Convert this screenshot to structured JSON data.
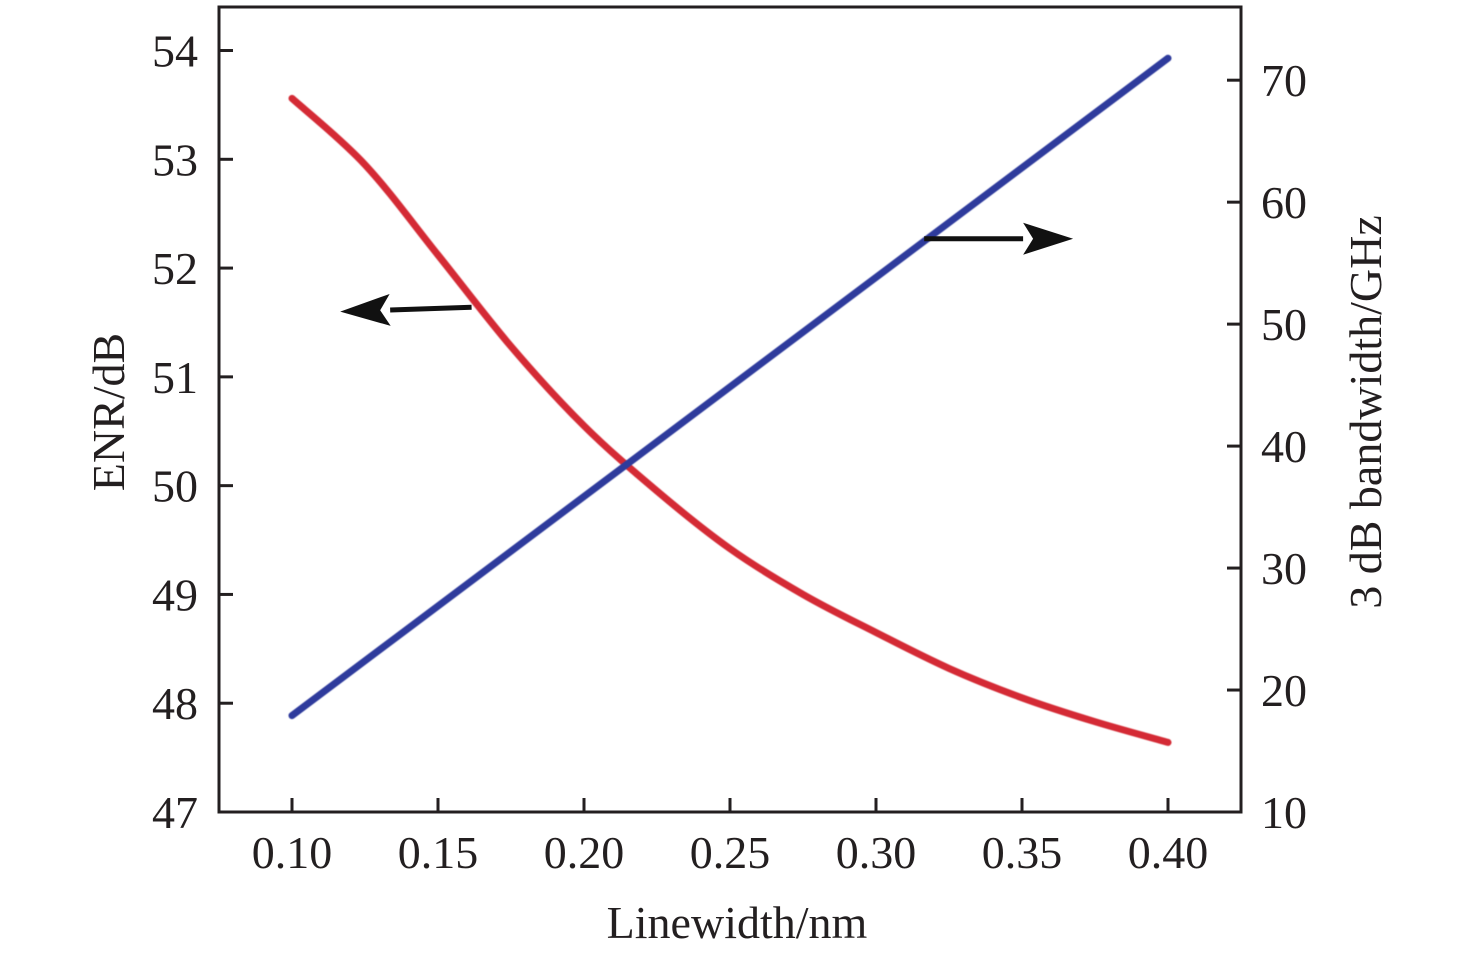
{
  "chart_data": {
    "type": "line",
    "title": "",
    "xlabel": "Linewidth/nm",
    "ylabel_left": "ENR/dB",
    "ylabel_right": "3 dB bandwidth/GHz",
    "xlim": [
      0.075,
      0.425
    ],
    "ylim_left": [
      47,
      54.4
    ],
    "ylim_right": [
      10,
      76
    ],
    "x_ticks": [
      "0.10",
      "0.15",
      "0.20",
      "0.25",
      "0.30",
      "0.35",
      "0.40"
    ],
    "y_left_ticks": [
      "47",
      "48",
      "49",
      "50",
      "51",
      "52",
      "53",
      "54"
    ],
    "y_right_ticks": [
      "10",
      "20",
      "30",
      "40",
      "50",
      "60",
      "70"
    ],
    "grid": false,
    "legend": "none",
    "series": [
      {
        "axis": "left",
        "color": "#d42a35",
        "x": [
          0.1,
          0.125,
          0.15,
          0.175,
          0.2,
          0.225,
          0.25,
          0.275,
          0.3,
          0.325,
          0.35,
          0.375,
          0.4
        ],
        "y": [
          53.56,
          52.95,
          52.12,
          51.28,
          50.55,
          49.95,
          49.42,
          49.0,
          48.65,
          48.32,
          48.05,
          47.83,
          47.64
        ]
      },
      {
        "axis": "right",
        "color": "#2e3a9c",
        "x": [
          0.1,
          0.4
        ],
        "y": [
          17.9,
          71.8
        ]
      }
    ],
    "annotations": [
      {
        "type": "arrow",
        "direction": "left",
        "points_to": "left-axis",
        "color": "#111111"
      },
      {
        "type": "arrow",
        "direction": "right",
        "points_to": "right-axis",
        "color": "#111111"
      }
    ]
  }
}
